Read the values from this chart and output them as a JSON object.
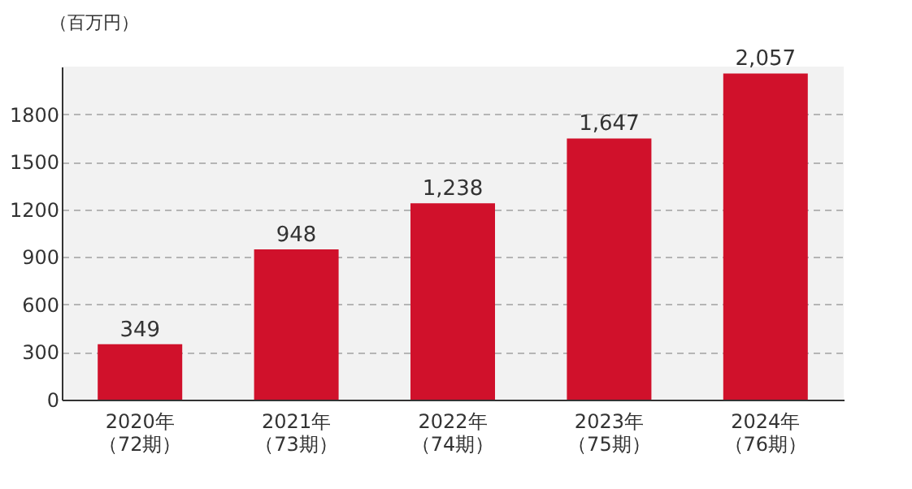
{
  "chart_data": {
    "type": "bar",
    "ylabel": "（百万円）",
    "categories": [
      "2020年（72期）",
      "2021年（73期）",
      "2022年（74期）",
      "2023年（75期）",
      "2024年（76期）"
    ],
    "values": [
      349,
      948,
      1238,
      1647,
      2057
    ],
    "value_labels": [
      "349",
      "948",
      "1,238",
      "1,647",
      "2,057"
    ],
    "color": "#d0112b",
    "ylim": [
      0,
      2100
    ],
    "yticks": [
      0,
      300,
      600,
      900,
      1200,
      1500,
      1800
    ],
    "grid": "y"
  }
}
